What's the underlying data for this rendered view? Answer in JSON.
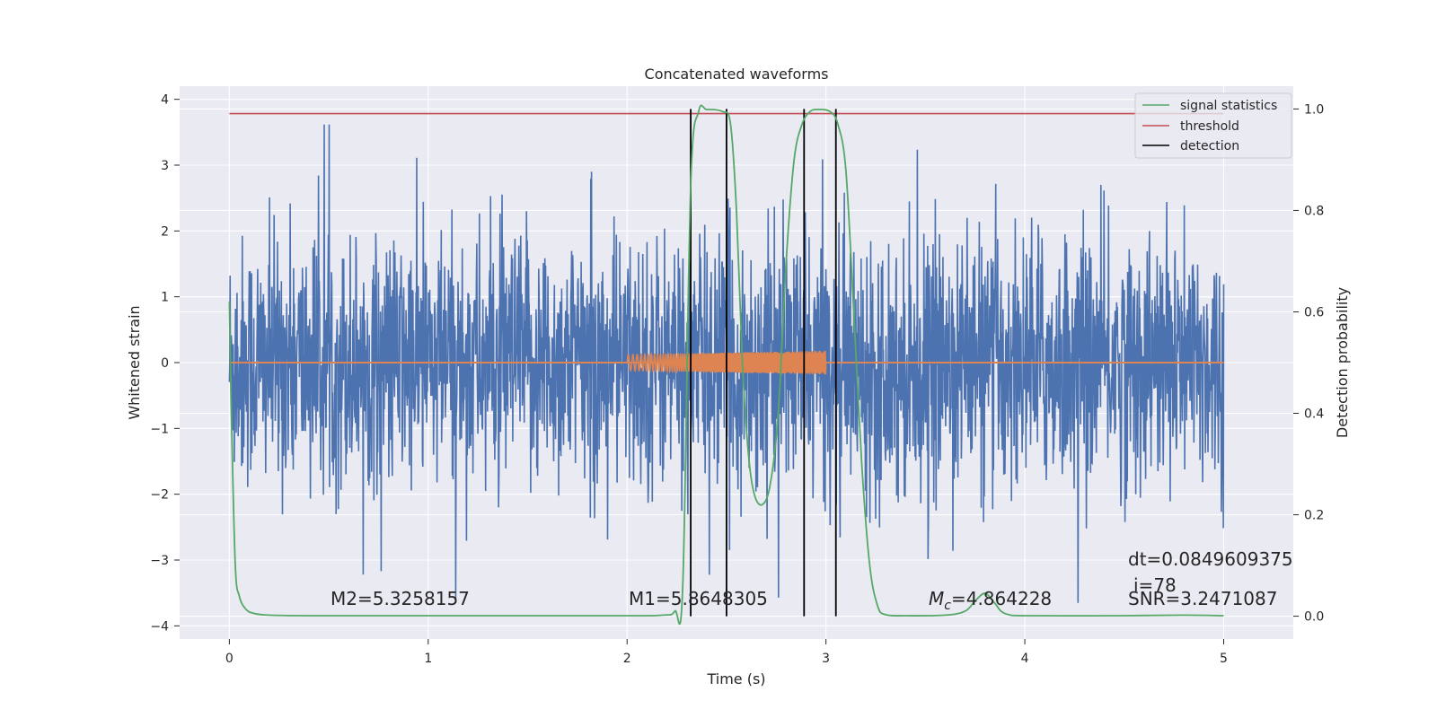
{
  "chart_data": {
    "type": "line",
    "title": "Concatenated waveforms",
    "xlabel": "Time (s)",
    "ylabel": "Whitened strain",
    "y2label": "Detection probability",
    "xlim": [
      -0.25,
      5.35
    ],
    "ylim": [
      -4.2,
      4.2
    ],
    "y2lim": [
      -0.045,
      1.045
    ],
    "xticks": [
      0,
      1,
      2,
      3,
      4,
      5
    ],
    "yticks": [
      -4,
      -3,
      -2,
      -1,
      0,
      1,
      2,
      3,
      4
    ],
    "y2ticks": [
      0.0,
      0.2,
      0.4,
      0.6,
      0.8,
      1.0
    ],
    "xtick_labels": [
      "0",
      "1",
      "2",
      "3",
      "4",
      "5"
    ],
    "ytick_labels": [
      "−4",
      "−3",
      "−2",
      "−1",
      "0",
      "1",
      "2",
      "3",
      "4"
    ],
    "y2tick_labels": [
      "0.0",
      "0.2",
      "0.4",
      "0.6",
      "0.8",
      "1.0"
    ],
    "grid": true,
    "legend_position": "top-right",
    "colors": {
      "strain": "#4c72b0",
      "template": "#dd8452",
      "statistic": "#55a868",
      "threshold": "#c44e52",
      "detection": "#000000",
      "plot_bg": "#eaeaf2",
      "grid": "#ffffff"
    },
    "strain": {
      "x_range": [
        0,
        5
      ],
      "typical_range": [
        -2.5,
        2.5
      ],
      "max": 3.8,
      "min": -3.65
    },
    "template": {
      "x_range": [
        2.0,
        3.0
      ],
      "amplitude_start": 0.12,
      "amplitude_end": 0.18
    },
    "threshold": {
      "value": 0.991,
      "x_range": [
        0,
        5
      ]
    },
    "signal_statistic": {
      "x": [
        0,
        0.01,
        0.03,
        0.05,
        0.08,
        0.12,
        0.2,
        0.4,
        1.0,
        1.5,
        2.0,
        2.18,
        2.24,
        2.28,
        2.32,
        2.36,
        2.4,
        2.48,
        2.52,
        2.55,
        2.58,
        2.61,
        2.64,
        2.68,
        2.72,
        2.76,
        2.8,
        2.84,
        2.88,
        2.92,
        2.96,
        3.02,
        3.06,
        3.1,
        3.14,
        3.18,
        3.22,
        3.26,
        3.3,
        3.4,
        3.6,
        3.7,
        3.75,
        3.8,
        3.85,
        3.88,
        3.92,
        4.0,
        4.5,
        4.8,
        5.0
      ],
      "y": [
        0.62,
        0.4,
        0.1,
        0.04,
        0.015,
        0.006,
        0.002,
        0.001,
        0.001,
        0.001,
        0.001,
        0.002,
        0.01,
        0.06,
        0.85,
        0.995,
        0.999,
        0.995,
        0.97,
        0.8,
        0.5,
        0.32,
        0.24,
        0.22,
        0.26,
        0.4,
        0.7,
        0.9,
        0.97,
        0.995,
        0.999,
        0.995,
        0.97,
        0.88,
        0.6,
        0.3,
        0.1,
        0.02,
        0.003,
        0.001,
        0.002,
        0.01,
        0.03,
        0.045,
        0.025,
        0.01,
        0.003,
        0.001,
        0.001,
        0.002,
        0.001
      ]
    },
    "detections": [
      2.32,
      2.5,
      2.89,
      3.05
    ],
    "legend": [
      "signal statistics",
      "threshold",
      "detection"
    ],
    "annotations": {
      "m2": "M2=5.3258157",
      "m1": "M1=5.8648305",
      "mc_symbol": "M",
      "mc_sub": "c",
      "mc_value": "=4.864228",
      "snr": "SNR=3.2471087",
      "dt": "dt=0.0849609375",
      "i": "i=78"
    }
  }
}
